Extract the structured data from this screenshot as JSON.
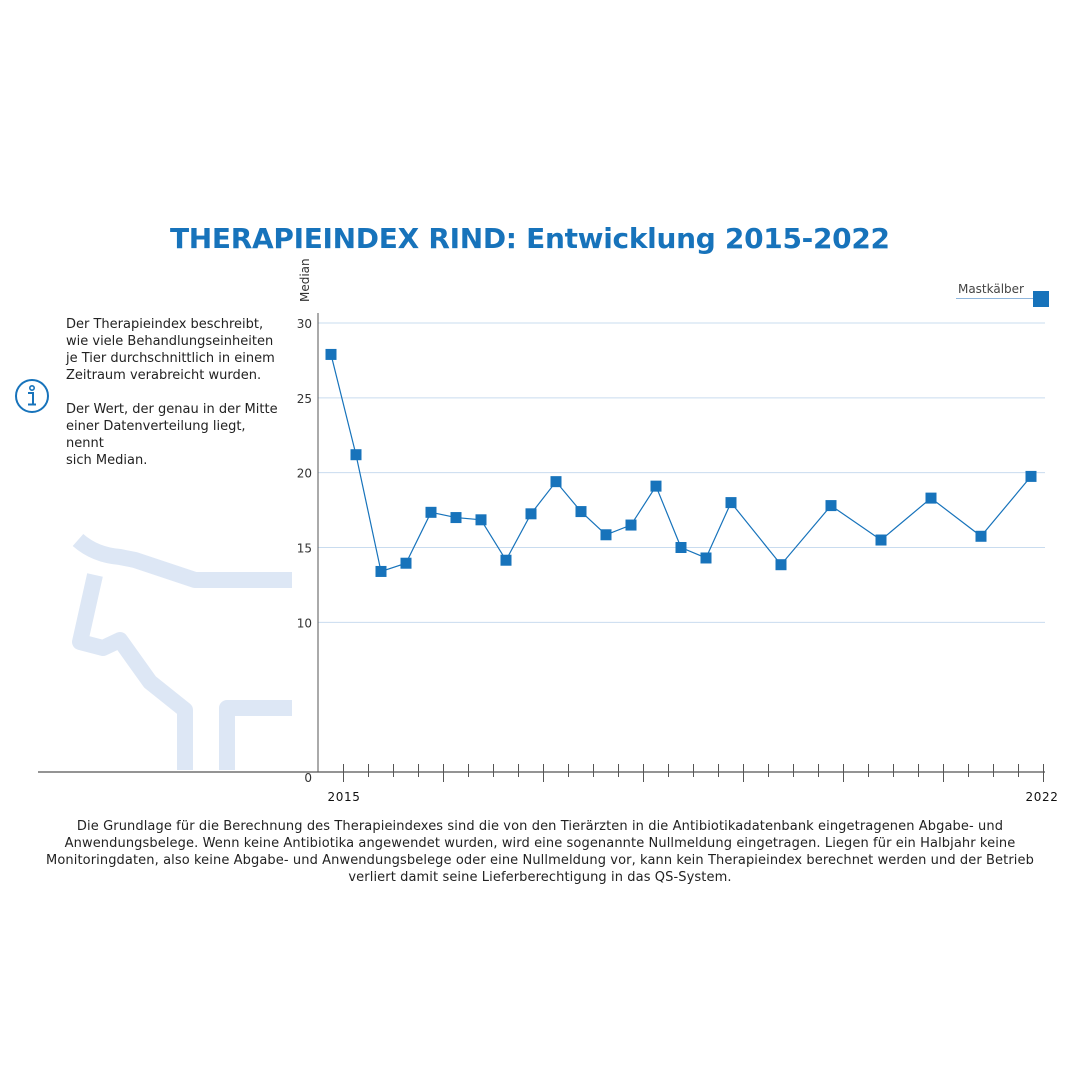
{
  "title": "THERAPIEINDEX RIND: Entwicklung 2015-2022",
  "info": {
    "paragraph1": "Der Therapieindex beschreibt,\nwie viele Behandlungseinheiten\nje Tier durchschnittlich in einem\nZeitraum verabreicht wurden.",
    "paragraph2": "Der Wert, der genau in der Mitte\neiner Datenverteilung liegt,\nnennt\nsich Median."
  },
  "footer": "Die Grundlage für die Berechnung des Therapieindexes sind die von den Tierärzten in die Antibiotikadatenbank eingetragenen Abgabe- und Anwendungsbelege. Wenn keine Antibiotika angewendet wurden, wird eine sogenannte Nullmeldung eingetragen. Liegen für ein Halbjahr keine Monitoringdaten, also keine Abgabe- und Anwendungsbelege oder eine Nullmeldung vor, kann kein Therapieindex berechnet werden und der Betrieb verliert damit seine Lieferberechtigung in das QS-System.",
  "colors": {
    "accent": "#1773bb",
    "grid": "#c9dcef",
    "graphic": "#dde7f5"
  },
  "icons": {
    "info": "info-icon",
    "background": "cow-outline-graphic"
  },
  "chart_data": {
    "type": "line",
    "title": "THERAPIEINDEX RIND: Entwicklung 2015-2022",
    "ylabel": "Median",
    "xlabel": "",
    "x_start_label": "2015",
    "x_end_label": "2022",
    "ylim": [
      0,
      30
    ],
    "y_ticks": [
      0,
      10,
      15,
      20,
      25,
      30
    ],
    "grid": true,
    "legend_position": "top-right",
    "series": [
      {
        "name": "Mastkälber",
        "marker": "square",
        "color": "#1773bb",
        "points": [
          {
            "x": 0,
            "y": 27.9
          },
          {
            "x": 1,
            "y": 21.2
          },
          {
            "x": 2,
            "y": 13.4
          },
          {
            "x": 3,
            "y": 13.95
          },
          {
            "x": 4,
            "y": 17.35
          },
          {
            "x": 5,
            "y": 17.0
          },
          {
            "x": 6,
            "y": 16.85
          },
          {
            "x": 7,
            "y": 14.15
          },
          {
            "x": 8,
            "y": 17.25
          },
          {
            "x": 9,
            "y": 19.4
          },
          {
            "x": 10,
            "y": 17.4
          },
          {
            "x": 11,
            "y": 15.85
          },
          {
            "x": 12,
            "y": 16.5
          },
          {
            "x": 13,
            "y": 19.1
          },
          {
            "x": 14,
            "y": 15.0
          },
          {
            "x": 15,
            "y": 14.3
          },
          {
            "x": 16,
            "y": 18.0
          },
          {
            "x": 18,
            "y": 13.85
          },
          {
            "x": 20,
            "y": 17.8
          },
          {
            "x": 22,
            "y": 15.5
          },
          {
            "x": 24,
            "y": 18.3
          },
          {
            "x": 26,
            "y": 15.75
          },
          {
            "x": 28,
            "y": 19.75
          }
        ]
      }
    ]
  }
}
